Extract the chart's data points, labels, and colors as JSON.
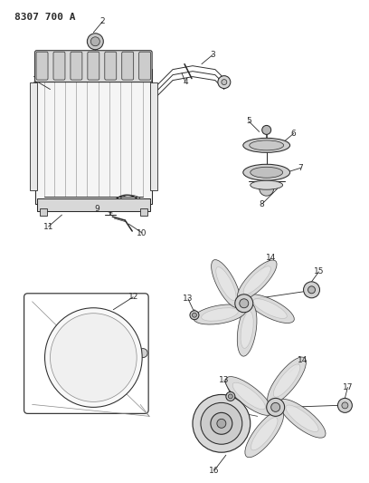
{
  "title": "8307 700 A",
  "bg_color": "#ffffff",
  "lc": "#2a2a2a",
  "lw": 0.75,
  "fig_width": 4.08,
  "fig_height": 5.33,
  "dpi": 100
}
